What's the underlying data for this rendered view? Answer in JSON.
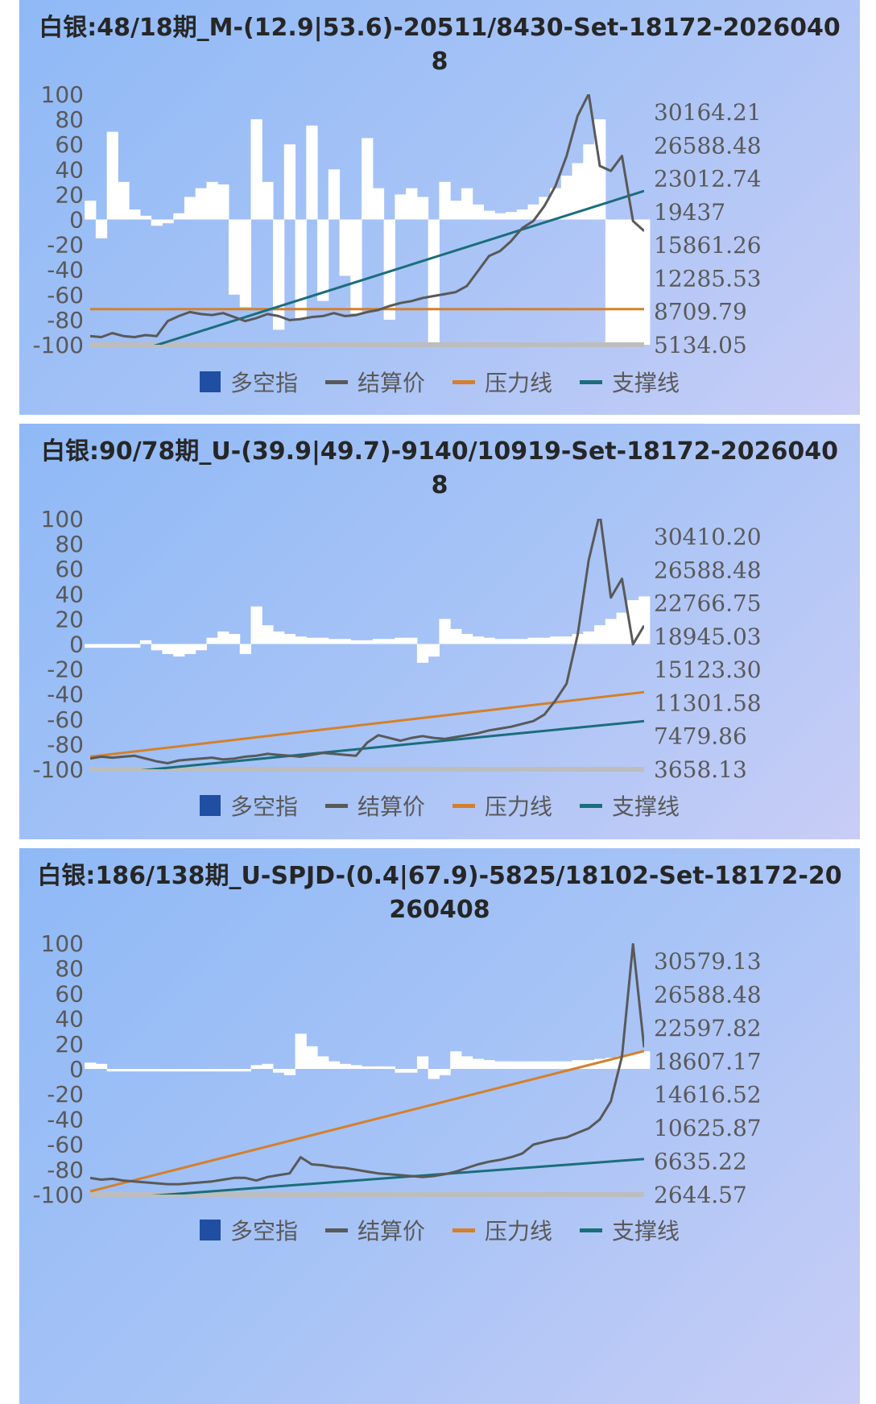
{
  "colors": {
    "bar": "#ffffff",
    "price": "#595959",
    "pressure": "#d4802c",
    "support": "#1a6e7c",
    "legend_bar": "#1f4ea3",
    "baseline": "#bdbdbd"
  },
  "legend": {
    "bar": "多空指",
    "price": "结算价",
    "pressure": "压力线",
    "support": "支撑线"
  },
  "chart_data": [
    {
      "type": "bar+line",
      "title": "白银:48/18期_M-(12.9|53.6)-20511/8430-Set-18172-20260408",
      "left_axis": {
        "ticks": [
          "100",
          "80",
          "60",
          "40",
          "20",
          "0",
          "-20",
          "-40",
          "-60",
          "-80",
          "-100"
        ],
        "ylim": [
          -100,
          100
        ]
      },
      "right_axis": {
        "ticks": [
          "30164.21",
          "26588.48",
          "23012.74",
          "19437",
          "15861.26",
          "12285.53",
          "8709.79",
          "5134.05"
        ],
        "ylim": [
          5134.05,
          30164.21
        ]
      },
      "x": [
        0,
        1,
        2,
        3,
        4,
        5,
        6,
        7,
        8,
        9,
        10,
        11,
        12,
        13,
        14,
        15,
        16,
        17,
        18,
        19,
        20,
        21,
        22,
        23,
        24,
        25,
        26,
        27,
        28,
        29,
        30,
        31,
        32,
        33,
        34,
        35,
        36,
        37,
        38,
        39,
        40,
        41,
        42,
        43,
        44,
        45,
        46,
        47,
        48,
        49,
        50
      ],
      "bars": [
        15,
        -15,
        70,
        30,
        8,
        3,
        -5,
        -3,
        5,
        18,
        25,
        30,
        28,
        -60,
        -70,
        80,
        30,
        -88,
        60,
        -80,
        75,
        -65,
        40,
        -45,
        -75,
        65,
        25,
        -80,
        20,
        25,
        18,
        -100,
        30,
        15,
        25,
        12,
        7,
        5,
        6,
        8,
        12,
        18,
        25,
        35,
        45,
        60,
        80,
        -100,
        -100,
        -100,
        -100
      ],
      "price": [
        6000,
        5900,
        6300,
        6000,
        5900,
        6100,
        6000,
        7500,
        8000,
        8400,
        8200,
        8100,
        8300,
        7900,
        7500,
        7800,
        8200,
        8000,
        7600,
        7700,
        7900,
        8000,
        8300,
        8000,
        8100,
        8400,
        8600,
        9000,
        9300,
        9500,
        9800,
        10000,
        10200,
        10400,
        11000,
        12500,
        14000,
        14500,
        15500,
        16800,
        17500,
        19000,
        21000,
        24000,
        28000,
        30200,
        23000,
        22500,
        24000,
        17500,
        16500
      ],
      "pressure": [
        8700,
        8700
      ],
      "support": [
        3000,
        20500
      ]
    },
    {
      "type": "bar+line",
      "title": "白银:90/78期_U-(39.9|49.7)-9140/10919-Set-18172-20260408",
      "left_axis": {
        "ticks": [
          "100",
          "80",
          "60",
          "40",
          "20",
          "0",
          "-20",
          "-40",
          "-60",
          "-80",
          "-100"
        ],
        "ylim": [
          -100,
          100
        ]
      },
      "right_axis": {
        "ticks": [
          "30410.20",
          "26588.48",
          "22766.75",
          "18945.03",
          "15123.30",
          "11301.58",
          "7479.86",
          "3658.13"
        ],
        "ylim": [
          3658.13,
          30410.2
        ]
      },
      "x": [
        0,
        1,
        2,
        3,
        4,
        5,
        6,
        7,
        8,
        9,
        10,
        11,
        12,
        13,
        14,
        15,
        16,
        17,
        18,
        19,
        20,
        21,
        22,
        23,
        24,
        25,
        26,
        27,
        28,
        29,
        30,
        31,
        32,
        33,
        34,
        35,
        36,
        37,
        38,
        39,
        40,
        41,
        42,
        43,
        44,
        45,
        46,
        47,
        48,
        49,
        50
      ],
      "bars": [
        -3,
        -3,
        -3,
        -3,
        -3,
        3,
        -5,
        -8,
        -10,
        -8,
        -5,
        5,
        10,
        8,
        -8,
        30,
        15,
        10,
        8,
        6,
        5,
        5,
        4,
        4,
        3,
        3,
        4,
        4,
        5,
        5,
        -15,
        -10,
        20,
        12,
        8,
        6,
        5,
        4,
        4,
        4,
        5,
        5,
        6,
        6,
        8,
        10,
        15,
        20,
        25,
        35,
        38
      ],
      "price": [
        4800,
        5000,
        4900,
        5000,
        5100,
        4800,
        4500,
        4300,
        4600,
        4700,
        4800,
        4900,
        4700,
        4800,
        5000,
        5100,
        5300,
        5200,
        5100,
        5000,
        5200,
        5400,
        5300,
        5200,
        5100,
        6500,
        7300,
        7000,
        6700,
        7000,
        7200,
        7000,
        6900,
        7100,
        7300,
        7500,
        7800,
        8000,
        8200,
        8500,
        8800,
        9500,
        11000,
        12800,
        18000,
        26000,
        31000,
        22000,
        24000,
        17000,
        19000
      ],
      "pressure": [
        5000,
        11900
      ],
      "support": [
        3000,
        8800
      ]
    },
    {
      "type": "bar+line",
      "title": "白银:186/138期_U-SPJD-(0.4|67.9)-5825/18102-Set-18172-20260408",
      "left_axis": {
        "ticks": [
          "100",
          "80",
          "60",
          "40",
          "20",
          "0",
          "-20",
          "-40",
          "-60",
          "-80",
          "-100"
        ],
        "ylim": [
          -100,
          100
        ]
      },
      "right_axis": {
        "ticks": [
          "30579.13",
          "26588.48",
          "22597.82",
          "18607.17",
          "14616.52",
          "10625.87",
          "6635.22",
          "2644.57"
        ],
        "ylim": [
          2644.57,
          30579.13
        ]
      },
      "x": [
        0,
        1,
        2,
        3,
        4,
        5,
        6,
        7,
        8,
        9,
        10,
        11,
        12,
        13,
        14,
        15,
        16,
        17,
        18,
        19,
        20,
        21,
        22,
        23,
        24,
        25,
        26,
        27,
        28,
        29,
        30,
        31,
        32,
        33,
        34,
        35,
        36,
        37,
        38,
        39,
        40,
        41,
        42,
        43,
        44,
        45,
        46,
        47,
        48,
        49,
        50
      ],
      "bars": [
        5,
        4,
        -2,
        -2,
        -2,
        -2,
        -2,
        -2,
        -2,
        -2,
        -2,
        -2,
        -2,
        -2,
        -2,
        3,
        4,
        -3,
        -5,
        28,
        18,
        10,
        6,
        4,
        3,
        2,
        2,
        2,
        -3,
        -3,
        10,
        -8,
        -5,
        14,
        10,
        8,
        7,
        6,
        6,
        6,
        6,
        6,
        6,
        6,
        7,
        7,
        8,
        9,
        10,
        12,
        14
      ],
      "price": [
        4500,
        4300,
        4400,
        4200,
        4100,
        4000,
        3900,
        3800,
        3800,
        3900,
        4000,
        4100,
        4300,
        4500,
        4500,
        4200,
        4600,
        4800,
        5000,
        6800,
        6000,
        5900,
        5700,
        5600,
        5400,
        5200,
        5000,
        4900,
        4800,
        4700,
        4600,
        4700,
        4900,
        5200,
        5600,
        6000,
        6300,
        6500,
        6800,
        7200,
        8200,
        8500,
        8800,
        9000,
        9500,
        10000,
        11000,
        13000,
        18000,
        30500,
        19000
      ],
      "pressure": [
        3000,
        18600
      ],
      "support": [
        2000,
        6600
      ]
    }
  ]
}
